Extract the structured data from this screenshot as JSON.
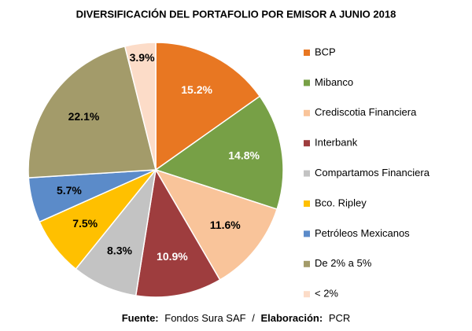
{
  "chart_data": {
    "type": "pie",
    "title": "DIVERSIFICACIÓN DEL PORTAFOLIO POR EMISOR A JUNIO 2018",
    "categories": [
      "BCP",
      "Mibanco",
      "Crediscotia Financiera",
      "Interbank",
      "Compartamos Financiera",
      "Bco. Ripley",
      "Petróleos Mexicanos",
      "De 2% a 5%",
      "< 2%"
    ],
    "values": [
      15.2,
      14.8,
      11.6,
      10.9,
      8.3,
      7.5,
      5.7,
      22.1,
      3.9
    ],
    "value_labels": [
      "15.2%",
      "14.8%",
      "11.6%",
      "10.9%",
      "8.3%",
      "7.5%",
      "5.7%",
      "22.1%",
      "3.9%"
    ],
    "colors": [
      "#E87722",
      "#77A046",
      "#F9C49A",
      "#9E3D3E",
      "#C3C3C3",
      "#FFC000",
      "#5B8BC9",
      "#A39B6A",
      "#FCDCC8"
    ],
    "label_colors": [
      "#ffffff",
      "#ffffff",
      "#000000",
      "#ffffff",
      "#000000",
      "#000000",
      "#000000",
      "#000000",
      "#000000"
    ],
    "legend": "right",
    "source": {
      "label1": "Fuente:",
      "text1": "Fondos Sura SAF",
      "sep": "/",
      "label2": "Elaboración:",
      "text2": "PCR"
    }
  }
}
